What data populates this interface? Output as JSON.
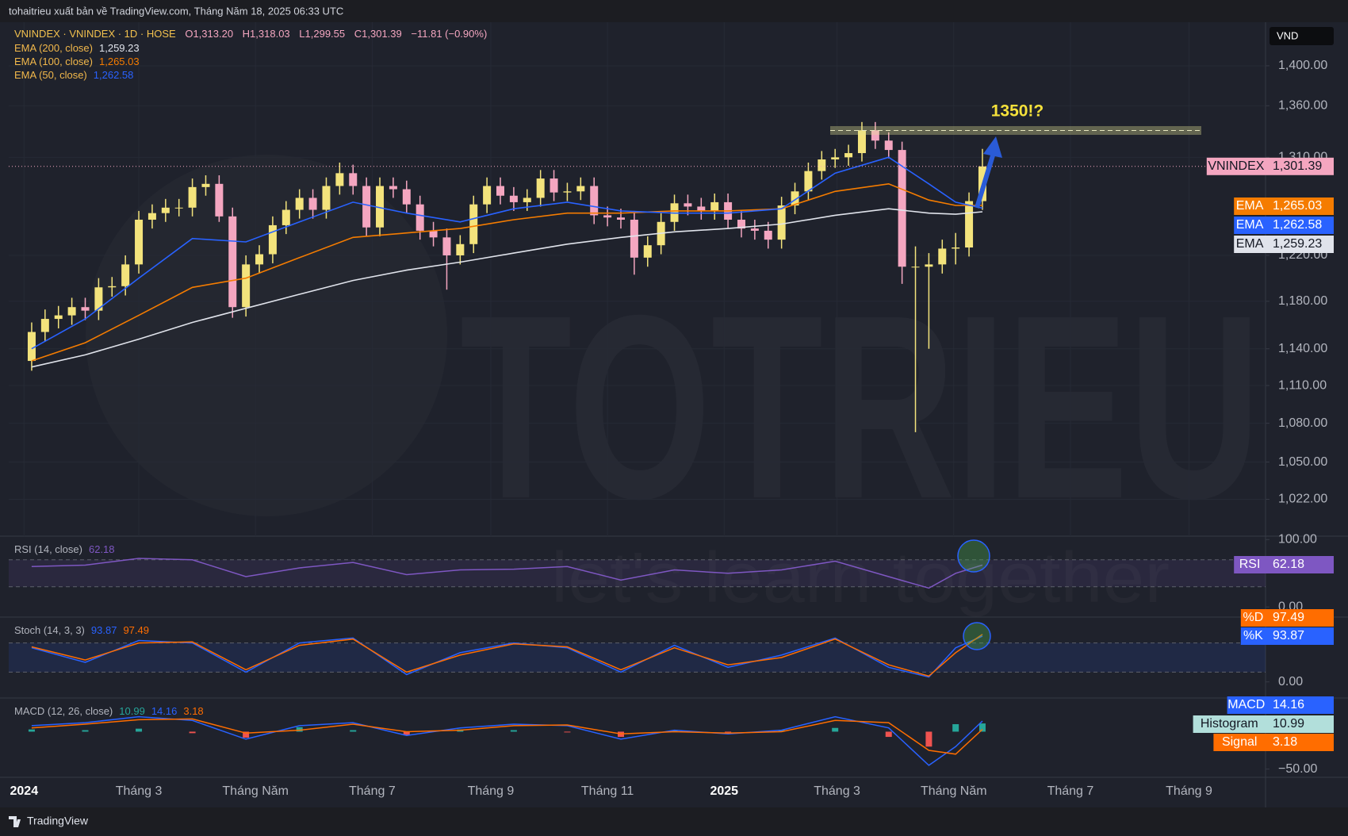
{
  "header": {
    "publisher": "tohaitrieu xuất bản về TradingView.com, Tháng Năm 18, 2025 06:33 UTC",
    "symbol": "VNINDEX · VNINDEX · 1D · HOSE",
    "open": "O1,313.20",
    "high": "H1,318.03",
    "low": "L1,299.55",
    "close": "C1,301.39",
    "change": "−11.81 (−0.90%)",
    "currency": "VND"
  },
  "footer": {
    "brand": "TradingView"
  },
  "chart_data": [
    {
      "type": "candlestick",
      "log": true,
      "grid": true,
      "up_color": "#f3e37c",
      "down_color": "#f4a6c0",
      "xlim": [
        -8,
        649
      ],
      "ylim": [
        995,
        1445
      ],
      "xticks": [
        {
          "value": 0,
          "label": "2024"
        },
        {
          "value": 60,
          "label": "Tháng 3"
        },
        {
          "value": 121,
          "label": "Tháng Năm"
        },
        {
          "value": 182,
          "label": "Tháng 7"
        },
        {
          "value": 244,
          "label": "Tháng 9"
        },
        {
          "value": 305,
          "label": "Tháng 11"
        },
        {
          "value": 366,
          "label": "2025"
        },
        {
          "value": 425,
          "label": "Tháng 3"
        },
        {
          "value": 486,
          "label": "Tháng Năm"
        },
        {
          "value": 547,
          "label": "Tháng 7"
        },
        {
          "value": 609,
          "label": "Tháng 9"
        }
      ],
      "yticks": [
        {
          "value": 1400,
          "label": "1,400.00"
        },
        {
          "value": 1360,
          "label": "1,360.00"
        },
        {
          "value": 1310,
          "label": "1,310.00"
        },
        {
          "value": 1220,
          "label": "1,220.00"
        },
        {
          "value": 1180,
          "label": "1,180.00"
        },
        {
          "value": 1140,
          "label": "1,140.00"
        },
        {
          "value": 1110,
          "label": "1,110.00"
        },
        {
          "value": 1080,
          "label": "1,080.00"
        },
        {
          "value": 1050,
          "label": "1,050.00"
        },
        {
          "value": 1022,
          "label": "1,022.00"
        }
      ],
      "x": [
        4,
        11,
        18,
        25,
        32,
        39,
        46,
        53,
        60,
        67,
        74,
        81,
        88,
        95,
        102,
        109,
        116,
        123,
        130,
        137,
        144,
        151,
        158,
        165,
        172,
        179,
        186,
        193,
        200,
        207,
        214,
        221,
        228,
        235,
        242,
        249,
        256,
        263,
        270,
        277,
        284,
        291,
        298,
        305,
        312,
        319,
        326,
        333,
        340,
        347,
        354,
        361,
        368,
        375,
        382,
        389,
        396,
        403,
        410,
        417,
        424,
        431,
        438,
        445,
        452,
        459,
        466,
        473,
        480,
        487,
        494,
        501
      ],
      "open": [
        1130,
        1154,
        1165,
        1168,
        1175,
        1172,
        1192,
        1193,
        1212,
        1252,
        1258,
        1263,
        1263,
        1282,
        1285,
        1255,
        1175,
        1212,
        1221,
        1247,
        1261,
        1272,
        1261,
        1283,
        1295,
        1283,
        1245,
        1283,
        1280,
        1266,
        1242,
        1236,
        1220,
        1230,
        1266,
        1283,
        1274,
        1268,
        1272,
        1290,
        1277,
        1278,
        1283,
        1256,
        1254,
        1252,
        1218,
        1229,
        1250,
        1267,
        1264,
        1260,
        1268,
        1252,
        1244,
        1242,
        1234,
        1265,
        1278,
        1297,
        1308,
        1310,
        1314,
        1336,
        1326,
        1317,
        1210,
        1210,
        1212,
        1226,
        1227,
        1269
      ],
      "high": [
        1162,
        1173,
        1176,
        1183,
        1183,
        1200,
        1201,
        1220,
        1260,
        1266,
        1271,
        1271,
        1290,
        1293,
        1293,
        1263,
        1220,
        1229,
        1255,
        1269,
        1280,
        1280,
        1291,
        1305,
        1303,
        1291,
        1291,
        1291,
        1288,
        1274,
        1250,
        1244,
        1238,
        1274,
        1291,
        1291,
        1282,
        1280,
        1298,
        1298,
        1286,
        1291,
        1291,
        1264,
        1262,
        1260,
        1237,
        1258,
        1275,
        1275,
        1272,
        1276,
        1276,
        1260,
        1252,
        1250,
        1273,
        1286,
        1305,
        1316,
        1318,
        1322,
        1344,
        1344,
        1334,
        1325,
        1228,
        1222,
        1234,
        1240,
        1277,
        1318.03
      ],
      "low": [
        1122,
        1146,
        1157,
        1160,
        1164,
        1164,
        1184,
        1185,
        1204,
        1244,
        1250,
        1255,
        1255,
        1274,
        1250,
        1166,
        1167,
        1204,
        1213,
        1239,
        1253,
        1253,
        1253,
        1275,
        1275,
        1237,
        1237,
        1272,
        1258,
        1234,
        1228,
        1190,
        1212,
        1222,
        1258,
        1266,
        1260,
        1260,
        1264,
        1269,
        1269,
        1270,
        1248,
        1246,
        1244,
        1203,
        1210,
        1221,
        1242,
        1256,
        1252,
        1252,
        1244,
        1236,
        1234,
        1226,
        1226,
        1257,
        1270,
        1289,
        1300,
        1302,
        1306,
        1318,
        1309,
        1195,
        1073,
        1140,
        1204,
        1212,
        1219,
        1261
      ],
      "close": [
        1154,
        1165,
        1168,
        1175,
        1172,
        1192,
        1193,
        1212,
        1252,
        1258,
        1263,
        1263,
        1282,
        1285,
        1255,
        1175,
        1212,
        1221,
        1247,
        1261,
        1272,
        1261,
        1283,
        1295,
        1283,
        1245,
        1283,
        1280,
        1266,
        1242,
        1236,
        1220,
        1230,
        1266,
        1283,
        1274,
        1268,
        1272,
        1290,
        1277,
        1278,
        1283,
        1256,
        1254,
        1252,
        1218,
        1229,
        1250,
        1267,
        1264,
        1260,
        1268,
        1252,
        1244,
        1242,
        1234,
        1265,
        1278,
        1297,
        1308,
        1310,
        1314,
        1336,
        1326,
        1317,
        1210,
        1210,
        1212,
        1226,
        1227,
        1269,
        1301.39
      ],
      "last_price": {
        "name": "VNINDEX",
        "value": 1301.39,
        "label": "1,301.39",
        "color": "#f4a6c0"
      },
      "overlays": [
        {
          "name": "EMA (200, close)",
          "badge": "EMA",
          "value_label": "1,259.23",
          "color": "#e0e3eb",
          "x": [
            4,
            32,
            60,
            88,
            116,
            144,
            172,
            200,
            228,
            256,
            284,
            312,
            340,
            368,
            396,
            424,
            452,
            473,
            487,
            501
          ],
          "values": [
            1125,
            1135,
            1148,
            1162,
            1174,
            1186,
            1198,
            1207,
            1214,
            1222,
            1230,
            1236,
            1241,
            1244,
            1248,
            1256,
            1262,
            1258,
            1257,
            1259.23
          ]
        },
        {
          "name": "EMA (100, close)",
          "badge": "EMA",
          "value_label": "1,265.03",
          "color": "#f57c00",
          "x": [
            4,
            32,
            60,
            88,
            116,
            144,
            172,
            200,
            228,
            256,
            284,
            312,
            340,
            368,
            396,
            424,
            452,
            473,
            487,
            501
          ],
          "values": [
            1130,
            1145,
            1168,
            1192,
            1200,
            1218,
            1236,
            1240,
            1244,
            1252,
            1258,
            1258,
            1260,
            1260,
            1262,
            1278,
            1285,
            1270,
            1265,
            1265.03
          ]
        },
        {
          "name": "EMA (50, close)",
          "badge": "EMA",
          "value_label": "1,262.58",
          "color": "#2962ff",
          "x": [
            4,
            32,
            60,
            88,
            116,
            144,
            172,
            200,
            228,
            256,
            284,
            312,
            340,
            368,
            396,
            424,
            452,
            473,
            487,
            501
          ],
          "values": [
            1140,
            1165,
            1200,
            1235,
            1232,
            1250,
            1268,
            1258,
            1250,
            1262,
            1268,
            1260,
            1258,
            1258,
            1262,
            1295,
            1310,
            1285,
            1268,
            1262.58
          ]
        }
      ],
      "annotations": {
        "target": "1350!?",
        "watermark": "TOTRIEU",
        "watermark_sub": "let's learn together"
      }
    },
    {
      "type": "line",
      "title": "RSI (14, close)",
      "ylim": [
        -15,
        105
      ],
      "yticks": [
        {
          "value": 100,
          "label": "100.00"
        },
        {
          "value": 0,
          "label": "0.00"
        }
      ],
      "bands": [
        30,
        70
      ],
      "band_color": "rgba(126,87,194,0.12)",
      "x": [
        4,
        32,
        60,
        88,
        116,
        144,
        172,
        200,
        228,
        256,
        284,
        312,
        340,
        368,
        396,
        424,
        452,
        473,
        487,
        501
      ],
      "series": [
        {
          "name": "RSI",
          "color": "#7e57c2",
          "value_label": "62.18",
          "values": [
            60,
            62,
            72,
            70,
            45,
            58,
            66,
            48,
            55,
            56,
            60,
            40,
            55,
            50,
            55,
            68,
            45,
            28,
            50,
            62.18
          ]
        }
      ]
    },
    {
      "type": "line",
      "title": "Stoch (14, 3, 3)",
      "ylim": [
        -33,
        133
      ],
      "yticks": [
        {
          "value": 0,
          "label": "0.00"
        }
      ],
      "bands": [
        20,
        80
      ],
      "band_color": "rgba(41,98,255,0.12)",
      "x": [
        4,
        32,
        60,
        88,
        116,
        144,
        172,
        200,
        228,
        256,
        284,
        312,
        340,
        368,
        396,
        424,
        452,
        473,
        487,
        501
      ],
      "series": [
        {
          "name": "%K",
          "color": "#2962ff",
          "value_label": "93.87",
          "values": [
            70,
            40,
            85,
            80,
            20,
            80,
            90,
            15,
            60,
            80,
            70,
            20,
            75,
            30,
            55,
            90,
            30,
            10,
            70,
            93.87
          ]
        },
        {
          "name": "%D",
          "color": "#ff6d00",
          "value_label": "97.49",
          "values": [
            72,
            45,
            80,
            82,
            25,
            75,
            88,
            20,
            55,
            78,
            72,
            25,
            70,
            35,
            50,
            88,
            35,
            12,
            60,
            97.49
          ]
        }
      ]
    },
    {
      "type": "line",
      "title": "MACD (12, 26, close)",
      "ylim": [
        -61,
        45
      ],
      "yticks": [
        {
          "value": -50,
          "label": "−50.00"
        }
      ],
      "x": [
        4,
        32,
        60,
        88,
        116,
        144,
        172,
        200,
        228,
        256,
        284,
        312,
        340,
        368,
        396,
        424,
        452,
        473,
        487,
        501
      ],
      "series": [
        {
          "name": "Histogram",
          "kind": "histogram",
          "color": "#26a69a",
          "negative_color": "#ef5350",
          "badge_color": "#b2dfdb",
          "value_label": "10.99",
          "values": [
            3,
            2,
            4,
            -2,
            -8,
            6,
            2,
            -5,
            3,
            2,
            -1,
            -7,
            2,
            -1,
            2,
            5,
            -7,
            -20,
            10,
            10.99
          ]
        },
        {
          "name": "MACD",
          "color": "#2962ff",
          "value_label": "14.16",
          "values": [
            8,
            12,
            20,
            15,
            -10,
            8,
            12,
            -5,
            5,
            10,
            8,
            -10,
            2,
            -3,
            2,
            20,
            5,
            -45,
            -20,
            14.16
          ]
        },
        {
          "name": "Signal",
          "color": "#ff6d00",
          "value_label": "3.18",
          "values": [
            5,
            10,
            16,
            17,
            -2,
            2,
            10,
            0,
            2,
            8,
            9,
            -3,
            0,
            -2,
            0,
            15,
            12,
            -25,
            -30,
            3.18
          ]
        }
      ]
    }
  ]
}
